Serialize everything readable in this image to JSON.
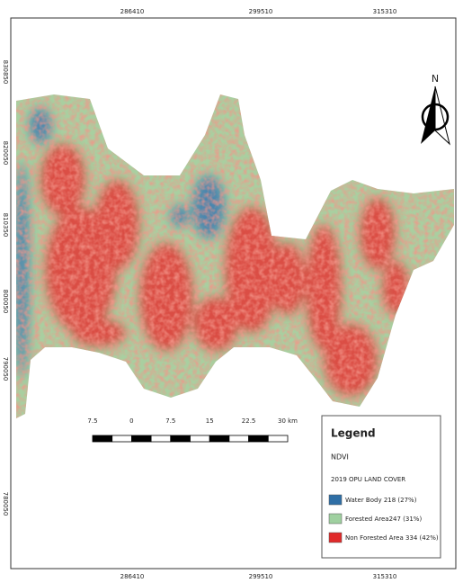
{
  "map": {
    "north": "N",
    "x_labels": [
      "286410",
      "299510",
      "315310"
    ],
    "y_labels": [
      "830850",
      "820050",
      "810350",
      "800050",
      "790050",
      "780050"
    ],
    "scale_bar": [
      "7.5",
      "0",
      "7.5",
      "15",
      "22.5",
      "30 km"
    ],
    "legend": {
      "title": "Legend",
      "layer": "NDVI",
      "subtitle": "2019 OPU LAND COVER",
      "items": [
        {
          "label": "Water Body 218 (27%)",
          "color": "#2f6fa6"
        },
        {
          "label": "Forested Area247 (31%)",
          "color": "#9fd0a0"
        },
        {
          "label": "Non Forested Area 334 (42%)",
          "color": "#e02a2a"
        }
      ]
    }
  }
}
